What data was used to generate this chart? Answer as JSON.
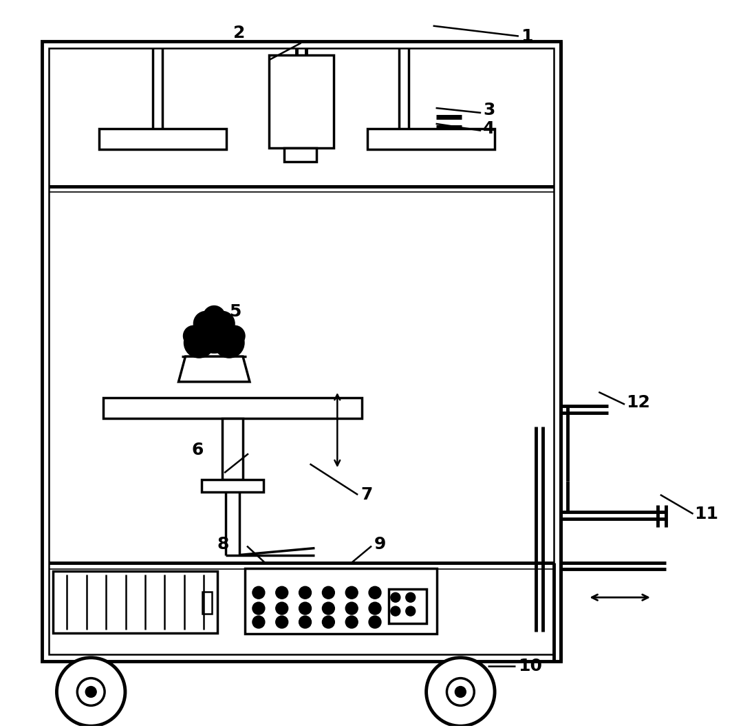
{
  "bg_color": "#ffffff",
  "fig_width": 10.96,
  "fig_height": 10.58,
  "lw_thick": 3.5,
  "lw_med": 2.5,
  "lw_thin": 1.8,
  "lw_vthin": 1.2
}
